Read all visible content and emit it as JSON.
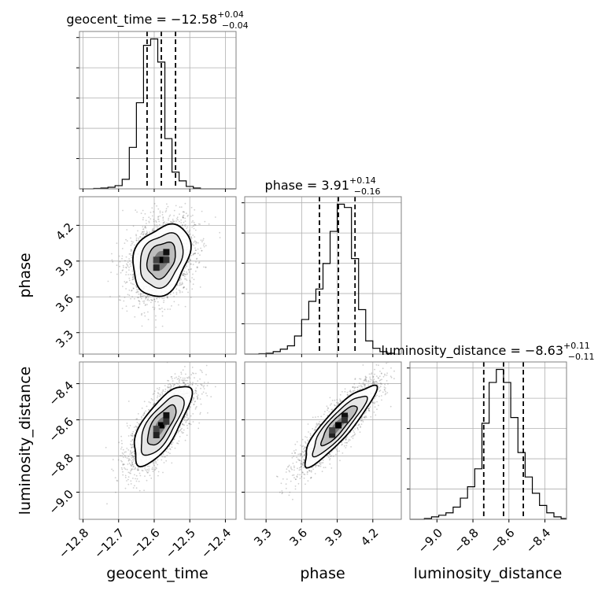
{
  "chart_data": {
    "type": "corner",
    "parameters": [
      {
        "name": "geocent_time",
        "axis_label": "geocent_time",
        "median": -12.58,
        "plus": "+0.04",
        "minus": "−0.04",
        "title_prefix": "geocent_time = −12.58",
        "range": [
          -12.81,
          -12.37
        ],
        "ticks": [
          -12.8,
          -12.7,
          -12.6,
          -12.5,
          -12.4
        ],
        "tick_labels": [
          "−12.8",
          "−12.7",
          "−12.6",
          "−12.5",
          "−12.4"
        ],
        "quantiles": [
          -12.62,
          -12.58,
          -12.54
        ],
        "hist_edges": [
          -12.81,
          -12.79,
          -12.77,
          -12.75,
          -12.73,
          -12.71,
          -12.69,
          -12.67,
          -12.65,
          -12.63,
          -12.61,
          -12.59,
          -12.57,
          -12.55,
          -12.53,
          -12.51,
          -12.49,
          -12.47,
          -12.45,
          -12.43,
          -12.41,
          -12.39,
          -12.37
        ],
        "hist_counts": [
          0,
          0,
          0.5,
          1,
          2,
          4,
          12,
          52,
          108,
          180,
          188,
          159,
          63,
          21,
          10,
          3,
          1,
          0,
          0,
          0,
          0,
          0
        ]
      },
      {
        "name": "phase",
        "axis_label": "phase",
        "median": 3.91,
        "plus": "+0.14",
        "minus": "−0.16",
        "title_prefix": "phase = 3.91",
        "range": [
          3.12,
          4.44
        ],
        "ticks": [
          3.3,
          3.6,
          3.9,
          4.2
        ],
        "tick_labels": [
          "3.3",
          "3.6",
          "3.9",
          "4.2"
        ],
        "quantiles": [
          3.75,
          3.91,
          4.05
        ],
        "hist_edges": [
          3.12,
          3.18,
          3.24,
          3.3,
          3.36,
          3.42,
          3.48,
          3.54,
          3.6,
          3.66,
          3.72,
          3.78,
          3.84,
          3.9,
          3.96,
          4.02,
          4.08,
          4.14,
          4.2,
          4.26,
          4.32,
          4.38,
          4.44
        ],
        "hist_counts": [
          0,
          0,
          0.5,
          1,
          3,
          6,
          10,
          22,
          42,
          64,
          79,
          110,
          149,
          182,
          178,
          116,
          54,
          16,
          7,
          3,
          1,
          0
        ],
        "x_ticks_rotated": true,
        "y_ticks_rotated": true
      },
      {
        "name": "luminosity_distance",
        "axis_label": "luminosity_distance",
        "median": -8.63,
        "plus": "+0.11",
        "minus": "−0.11",
        "title_prefix": "luminosity_distance = −8.63",
        "range": [
          -9.15,
          -8.28
        ],
        "ticks": [
          -9.0,
          -8.8,
          -8.6,
          -8.4
        ],
        "tick_labels": [
          "−9.0",
          "−8.8",
          "−8.6",
          "−8.4"
        ],
        "quantiles": [
          -8.74,
          -8.63,
          -8.52
        ],
        "hist_edges": [
          -9.15,
          -9.11,
          -9.07,
          -9.03,
          -8.99,
          -8.95,
          -8.91,
          -8.87,
          -8.83,
          -8.79,
          -8.75,
          -8.71,
          -8.67,
          -8.63,
          -8.59,
          -8.55,
          -8.51,
          -8.47,
          -8.43,
          -8.39,
          -8.35,
          -8.31,
          -8.28
        ],
        "hist_counts": [
          0,
          0,
          1,
          3,
          5,
          8,
          15,
          26,
          40,
          62,
          118,
          168,
          184,
          168,
          125,
          82,
          52,
          32,
          17,
          8,
          3,
          1
        ]
      }
    ],
    "panels_2d": [
      {
        "x": "geocent_time",
        "y": "phase",
        "rho": 0.28
      },
      {
        "x": "geocent_time",
        "y": "luminosity_distance",
        "rho": 0.72
      },
      {
        "x": "phase",
        "y": "luminosity_distance",
        "rho": 0.88
      }
    ],
    "grid": true,
    "colors": {
      "line": "#000000",
      "points": "#555555",
      "grid": "#b0b0b0",
      "frame": "#808080"
    }
  }
}
